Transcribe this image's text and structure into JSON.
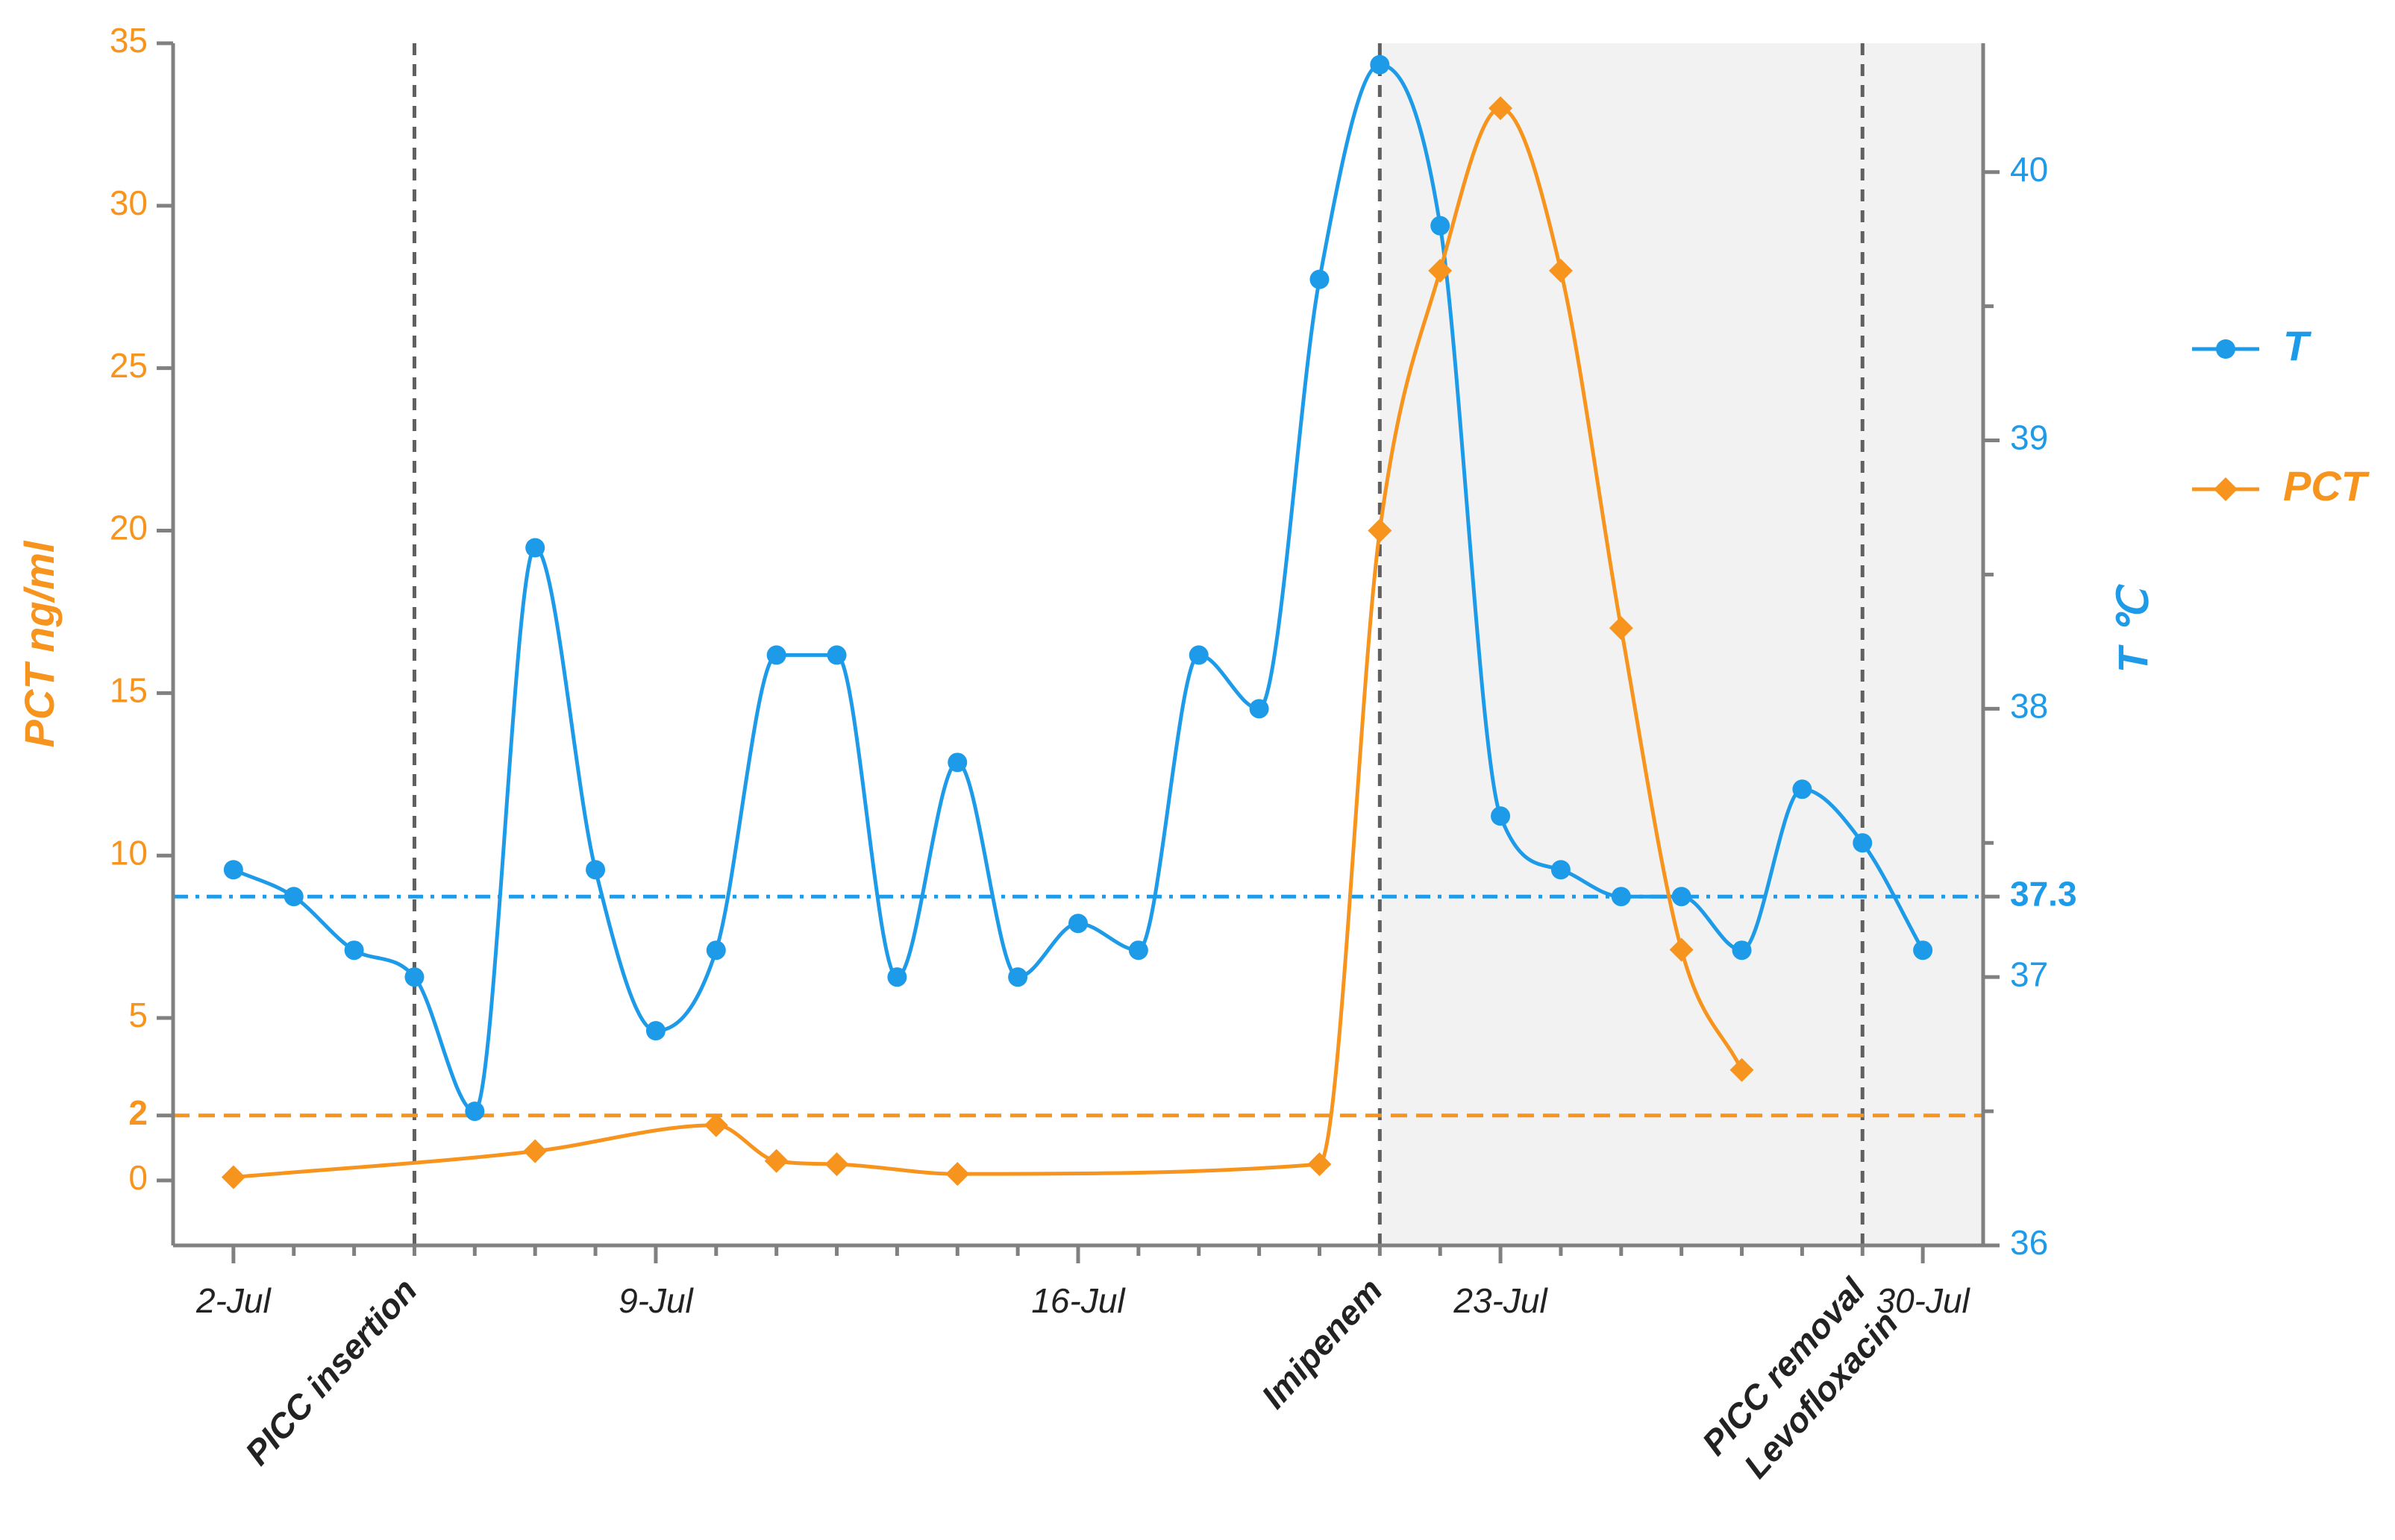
{
  "chart_data": {
    "type": "line",
    "colors": {
      "temperature": "#1E9BE8",
      "pct": "#F7941D",
      "event_line": "#606060",
      "shade": "#F2F2F2",
      "axis": "#808080"
    },
    "x_axis": {
      "range": [
        1,
        31
      ],
      "ticks": [
        {
          "day": 2,
          "label": "2-Jul"
        },
        {
          "day": 9,
          "label": "9-Jul"
        },
        {
          "day": 16,
          "label": "16-Jul"
        },
        {
          "day": 23,
          "label": "23-Jul"
        },
        {
          "day": 30,
          "label": "30-Jul"
        }
      ],
      "minor_ticks": [
        3,
        4,
        5,
        6,
        7,
        8,
        10,
        11,
        12,
        13,
        14,
        15,
        17,
        18,
        19,
        20,
        21,
        22,
        24,
        25,
        26,
        27,
        28,
        29
      ]
    },
    "left_axis": {
      "title": "PCT ng/ml",
      "range": [
        -2,
        35
      ],
      "ticks": [
        {
          "value": 0,
          "label": "0",
          "bold": false
        },
        {
          "value": 2,
          "label": "2",
          "bold": true
        },
        {
          "value": 5,
          "label": "5",
          "bold": false
        },
        {
          "value": 10,
          "label": "10",
          "bold": false
        },
        {
          "value": 15,
          "label": "15",
          "bold": false
        },
        {
          "value": 20,
          "label": "20",
          "bold": false
        },
        {
          "value": 25,
          "label": "25",
          "bold": false
        },
        {
          "value": 30,
          "label": "30",
          "bold": false
        },
        {
          "value": 35,
          "label": "35",
          "bold": false
        }
      ]
    },
    "right_axis": {
      "title": "T ℃",
      "range": [
        36,
        40.48
      ],
      "ticks": [
        {
          "value": 36,
          "label": "36",
          "bold": false
        },
        {
          "value": 37,
          "label": "37",
          "bold": false
        },
        {
          "value": 37.3,
          "label": "37.3",
          "bold": true
        },
        {
          "value": 38,
          "label": "38",
          "bold": false
        },
        {
          "value": 39,
          "label": "39",
          "bold": false
        },
        {
          "value": 40,
          "label": "40",
          "bold": false
        }
      ],
      "minor_ticks": [
        36.5,
        37.5,
        38.5,
        39.5
      ]
    },
    "series": [
      {
        "name": "T",
        "axis": "right",
        "marker": "circle",
        "points": [
          {
            "day": 2,
            "value": 37.4
          },
          {
            "day": 3,
            "value": 37.3
          },
          {
            "day": 4,
            "value": 37.1
          },
          {
            "day": 5,
            "value": 37.0
          },
          {
            "day": 6,
            "value": 36.5
          },
          {
            "day": 7,
            "value": 38.6
          },
          {
            "day": 8,
            "value": 37.4
          },
          {
            "day": 9,
            "value": 36.8
          },
          {
            "day": 10,
            "value": 37.1
          },
          {
            "day": 11,
            "value": 38.2
          },
          {
            "day": 12,
            "value": 38.2
          },
          {
            "day": 13,
            "value": 37.0
          },
          {
            "day": 14,
            "value": 37.8
          },
          {
            "day": 15,
            "value": 37.0
          },
          {
            "day": 16,
            "value": 37.2
          },
          {
            "day": 17,
            "value": 37.1
          },
          {
            "day": 18,
            "value": 38.2
          },
          {
            "day": 19,
            "value": 38.0
          },
          {
            "day": 20,
            "value": 39.6
          },
          {
            "day": 21,
            "value": 40.4
          },
          {
            "day": 22,
            "value": 39.8
          },
          {
            "day": 23,
            "value": 37.6
          },
          {
            "day": 24,
            "value": 37.4
          },
          {
            "day": 25,
            "value": 37.3
          },
          {
            "day": 26,
            "value": 37.3
          },
          {
            "day": 27,
            "value": 37.1
          },
          {
            "day": 28,
            "value": 37.7
          },
          {
            "day": 29,
            "value": 37.5
          },
          {
            "day": 30,
            "value": 37.1
          }
        ]
      },
      {
        "name": "PCT",
        "axis": "left",
        "marker": "diamond",
        "points": [
          {
            "day": 2,
            "value": 0.1
          },
          {
            "day": 7,
            "value": 0.9
          },
          {
            "day": 10,
            "value": 1.7
          },
          {
            "day": 11,
            "value": 0.6
          },
          {
            "day": 12,
            "value": 0.5
          },
          {
            "day": 14,
            "value": 0.2
          },
          {
            "day": 20,
            "value": 0.5
          },
          {
            "day": 21,
            "value": 20.0
          },
          {
            "day": 22,
            "value": 28.0
          },
          {
            "day": 23,
            "value": 33.0
          },
          {
            "day": 24,
            "value": 28.0
          },
          {
            "day": 25,
            "value": 17.0
          },
          {
            "day": 26,
            "value": 7.1
          },
          {
            "day": 27,
            "value": 3.4
          }
        ]
      }
    ],
    "reference_lines": [
      {
        "axis": "right",
        "value": 37.3,
        "style": "dash-dot",
        "series": "T"
      },
      {
        "axis": "left",
        "value": 2,
        "style": "dashed",
        "series": "PCT"
      }
    ],
    "event_lines": [
      {
        "day": 5,
        "labels": [
          "PICC insertion"
        ]
      },
      {
        "day": 21,
        "labels": [
          "Imipenem"
        ]
      },
      {
        "day": 29,
        "labels": [
          "PICC removal",
          "Levofloxacin"
        ]
      }
    ],
    "shaded_region": {
      "from_day": 21,
      "to_day": 31
    },
    "legend": {
      "position": "right",
      "items": [
        "T",
        "PCT"
      ]
    }
  }
}
